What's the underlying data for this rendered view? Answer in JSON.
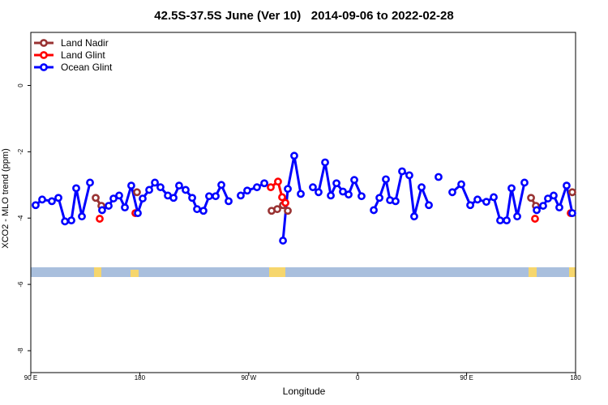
{
  "chart_data": {
    "type": "line",
    "title": "42.5S-37.5S June (Ver 10)   2014-09-06 to 2022-02-28",
    "x_label": "Longitude",
    "y_label": "XCO2 - MLO trend (ppm)",
    "xlim": [
      90,
      540
    ],
    "xticks": [
      {
        "value": 90,
        "label": "90 E"
      },
      {
        "value": 180,
        "label": "180"
      },
      {
        "value": 270,
        "label": "90 W"
      },
      {
        "value": 360,
        "label": "0"
      },
      {
        "value": 450,
        "label": "90 E"
      },
      {
        "value": 540,
        "label": "180"
      }
    ],
    "ylim": [
      -8.66,
      1.6
    ],
    "yticks": [
      0,
      -2,
      -4,
      -6,
      -8
    ],
    "grid": false,
    "legend": "top-left",
    "series": [
      {
        "name": "Land Nadir",
        "color": "#993333",
        "x": [
          143.6,
          148.3,
          null,
          177.7,
          null,
          288.9,
          293.6,
          298.3,
          302.3,
          null,
          503.2,
          507.2,
          null,
          537.3
        ],
        "values": [
          -3.39,
          -3.63,
          null,
          -3.22,
          null,
          -3.78,
          -3.73,
          -3.61,
          -3.78,
          null,
          -3.39,
          -3.63,
          null,
          -3.22
        ]
      },
      {
        "name": "Land Glint",
        "color": "#ff0000",
        "x": [
          146.9,
          null,
          176.4,
          null,
          288.2,
          294.2,
          297.6,
          300.3,
          null,
          506.5,
          null,
          536.0
        ],
        "values": [
          -4.02,
          null,
          -3.85,
          null,
          -3.07,
          -2.9,
          -3.37,
          -3.54,
          null,
          -4.02,
          null,
          -3.85
        ]
      },
      {
        "name": "Ocean Glint",
        "color": "#0000ff",
        "x": [
          94.0,
          99.4,
          107.4,
          112.8,
          118.2,
          123.5,
          127.5,
          132.2,
          138.9,
          null,
          148.9,
          154.3,
          158.3,
          163.0,
          167.7,
          173.0,
          178.4,
          182.4,
          187.8,
          192.5,
          197.1,
          203.2,
          207.9,
          212.5,
          217.9,
          223.3,
          227.3,
          232.6,
          237.3,
          242.7,
          247.4,
          253.4,
          null,
          263.4,
          268.8,
          276.8,
          282.9,
          null,
          298.3,
          302.3,
          307.6,
          313.0,
          null,
          323.0,
          327.7,
          333.1,
          337.8,
          342.5,
          347.8,
          352.5,
          357.2,
          363.2,
          null,
          373.3,
          378.0,
          383.3,
          386.7,
          391.3,
          396.7,
          402.7,
          406.7,
          412.8,
          418.8,
          null,
          426.8,
          null,
          438.2,
          445.6,
          453.0,
          459.0,
          466.3,
          472.4,
          477.7,
          483.1,
          487.1,
          491.8,
          497.8,
          null,
          507.9,
          513.2,
          517.2,
          521.9,
          526.6,
          532.6,
          537.3
        ],
        "values": [
          -3.61,
          -3.44,
          -3.49,
          -3.39,
          -4.1,
          -4.07,
          -3.1,
          -3.95,
          -2.93,
          null,
          -3.76,
          -3.63,
          -3.41,
          -3.32,
          -3.68,
          -3.02,
          -3.85,
          -3.41,
          -3.15,
          -2.93,
          -3.07,
          -3.32,
          -3.39,
          -3.02,
          -3.15,
          -3.39,
          -3.73,
          -3.78,
          -3.34,
          -3.34,
          -3.0,
          -3.49,
          null,
          -3.32,
          -3.17,
          -3.07,
          -2.95,
          null,
          -4.68,
          -3.12,
          -2.12,
          -3.27,
          null,
          -3.07,
          -3.22,
          -2.32,
          -3.32,
          -2.95,
          -3.2,
          -3.29,
          -2.85,
          -3.34,
          null,
          -3.76,
          -3.39,
          -2.83,
          -3.46,
          -3.49,
          -2.59,
          -2.71,
          -3.95,
          -3.07,
          -3.61,
          null,
          -2.76,
          null,
          -3.22,
          -2.98,
          -3.61,
          -3.44,
          -3.51,
          -3.37,
          -4.07,
          -4.07,
          -3.1,
          -3.95,
          -2.93,
          null,
          -3.76,
          -3.63,
          -3.41,
          -3.32,
          -3.68,
          -3.02,
          -3.85
        ]
      }
    ]
  }
}
